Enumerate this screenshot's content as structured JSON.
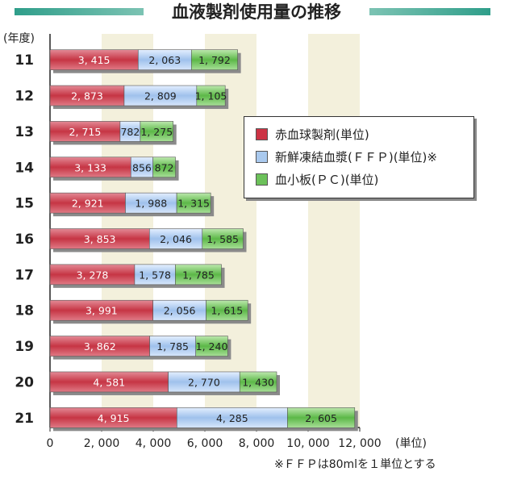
{
  "chart_data": {
    "type": "bar",
    "orientation": "horizontal",
    "stacked": true,
    "title": "血液製剤使用量の推移",
    "ylabel": "(年度)",
    "xlabel": "(単位)",
    "categories": [
      "11",
      "12",
      "13",
      "14",
      "15",
      "16",
      "17",
      "18",
      "19",
      "20",
      "21"
    ],
    "series": [
      {
        "name": "赤血球製剤(単位)",
        "color": "#cc3344",
        "values": [
          3415,
          2873,
          2715,
          3133,
          2921,
          3853,
          3278,
          3991,
          3862,
          4581,
          4915
        ],
        "labels": [
          "3, 415",
          "2, 873",
          "2, 715",
          "3, 133",
          "2, 921",
          "3, 853",
          "3, 278",
          "3, 991",
          "3, 862",
          "4, 581",
          "4, 915"
        ]
      },
      {
        "name": "新鮮凍結血漿(ＦＦＰ)(単位)※",
        "color": "#a9c9ee",
        "values": [
          2063,
          2809,
          782,
          856,
          1988,
          2046,
          1578,
          2056,
          1785,
          2770,
          4285
        ],
        "labels": [
          "2, 063",
          "2, 809",
          "782",
          "856",
          "1, 988",
          "2, 046",
          "1, 578",
          "2, 056",
          "1, 785",
          "2, 770",
          "4, 285"
        ]
      },
      {
        "name": "血小板(ＰＣ)(単位)",
        "color": "#6cc15a",
        "values": [
          1792,
          1105,
          1275,
          872,
          1315,
          1585,
          1785,
          1615,
          1240,
          1430,
          2605
        ],
        "labels": [
          "1, 792",
          "1, 105",
          "1, 275",
          "872",
          "1, 315",
          "1, 585",
          "1, 785",
          "1, 615",
          "1, 240",
          "1, 430",
          "2, 605"
        ]
      }
    ],
    "xlim": [
      0,
      12000
    ],
    "xticks": [
      0,
      2000,
      4000,
      6000,
      8000,
      10000,
      12000
    ],
    "xtick_labels": [
      "0",
      "2, 000",
      "4, 000",
      "6, 000",
      "8, 000",
      "10, 000",
      "12, 000"
    ],
    "grid": "alternating-bands",
    "legend_position": "right-center",
    "footnote": "※ＦＦＰは80mlを１単位とする"
  },
  "colors": {
    "title_band": "#2f9e8a",
    "band_fill": "#f3f0dc"
  }
}
